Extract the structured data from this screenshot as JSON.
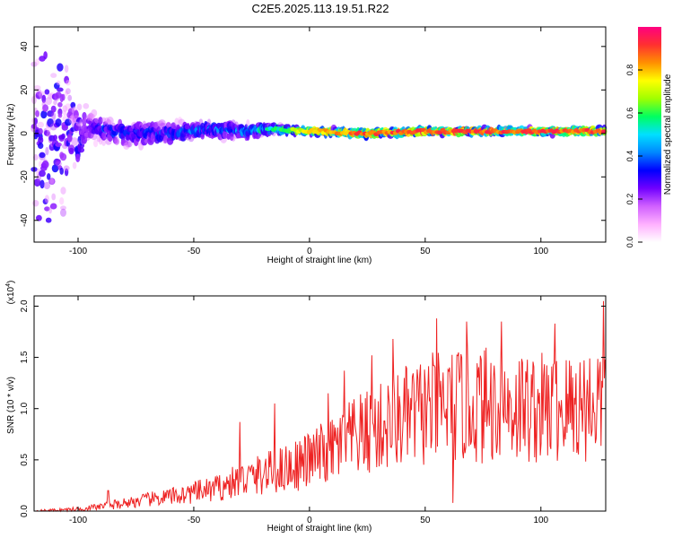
{
  "title": "C2E5.2025.113.19.51.R22",
  "colors": {
    "snr_line": "#ee2222",
    "spectrogram_peak": "#ff2a2a",
    "background": "#ffffff"
  },
  "chart_data": [
    {
      "type": "heatmap",
      "name": "spectrogram",
      "title": "C2E5.2025.113.19.51.R22",
      "xlabel": "Height of straight line (km)",
      "ylabel": "Frequency (Hz)",
      "xlim": [
        -119,
        128
      ],
      "ylim": [
        -50,
        49
      ],
      "x_ticks": [
        -100,
        -50,
        0,
        50,
        100
      ],
      "x_tick_labels": [
        "-100",
        "-50",
        "0",
        "50",
        "100"
      ],
      "y_ticks": [
        -40,
        -20,
        0,
        20,
        40
      ],
      "y_tick_labels": [
        "-40",
        "-20",
        "0",
        "20",
        "40"
      ],
      "colorbar": {
        "label": "Normalized spectral amplitude",
        "range": [
          0,
          1
        ],
        "ticks": [
          0,
          0.2,
          0.4,
          0.6,
          0.8
        ],
        "tick_labels": [
          "0.0",
          "0.2",
          "0.4",
          "0.6",
          "0.8"
        ],
        "colormap": [
          "#ffffff",
          "#ffb0ff",
          "#d060ff",
          "#7000ff",
          "#0000ff",
          "#0088ff",
          "#00e0ff",
          "#00ff60",
          "#a0ff00",
          "#ffff00",
          "#ff9000",
          "#ff3030",
          "#ff0080"
        ]
      },
      "ridge": [
        {
          "x": -110,
          "freq": 0,
          "spread": 40,
          "amp": 0.15
        },
        {
          "x": -95,
          "freq": 3,
          "spread": 7,
          "amp": 0.35
        },
        {
          "x": -80,
          "freq": 0,
          "spread": 6,
          "amp": 0.4
        },
        {
          "x": -60,
          "freq": 0,
          "spread": 6,
          "amp": 0.4
        },
        {
          "x": -45,
          "freq": 2,
          "spread": 4,
          "amp": 0.45
        },
        {
          "x": -30,
          "freq": 1,
          "spread": 4,
          "amp": 0.45
        },
        {
          "x": -15,
          "freq": 2,
          "spread": 2,
          "amp": 0.6
        },
        {
          "x": 0,
          "freq": 1,
          "spread": 1.5,
          "amp": 0.85
        },
        {
          "x": 25,
          "freq": 0,
          "spread": 1.5,
          "amp": 0.95
        },
        {
          "x": 50,
          "freq": 1,
          "spread": 1.5,
          "amp": 0.95
        },
        {
          "x": 100,
          "freq": 1,
          "spread": 1.5,
          "amp": 0.95
        },
        {
          "x": 128,
          "freq": 1,
          "spread": 1.5,
          "amp": 0.95
        }
      ]
    },
    {
      "type": "line",
      "name": "snr",
      "xlabel": "Height of straight line (km)",
      "ylabel": "SNR (10 * v/v)",
      "y_multiplier_label": "(x10",
      "y_multiplier_exp": "4",
      "y_multiplier_close": ")",
      "xlim": [
        -119,
        128
      ],
      "ylim": [
        0,
        2.1
      ],
      "x_ticks": [
        -100,
        -50,
        0,
        50,
        100
      ],
      "x_tick_labels": [
        "-100",
        "-50",
        "0",
        "50",
        "100"
      ],
      "y_ticks": [
        0,
        0.5,
        1.0,
        1.5,
        2.0
      ],
      "y_tick_labels": [
        "0.0",
        "0.5",
        "1.0",
        "1.5",
        "2.0"
      ],
      "series": [
        {
          "envelope": {
            "x": [
              -119,
              -100,
              -88,
              -80,
              -60,
              -40,
              -30,
              -20,
              -10,
              0,
              10,
              20,
              30,
              40,
              50,
              60,
              70,
              80,
              90,
              100,
              110,
              120,
              128
            ],
            "y": [
              0.0,
              0.02,
              0.05,
              0.08,
              0.14,
              0.22,
              0.3,
              0.36,
              0.42,
              0.5,
              0.6,
              0.72,
              0.8,
              0.9,
              0.98,
              1.02,
              1.03,
              1.04,
              1.02,
              1.0,
              1.0,
              1.05,
              1.1
            ]
          },
          "spikes": [
            {
              "x": -87,
              "y": 0.2
            },
            {
              "x": -30,
              "y": 0.87
            },
            {
              "x": -15,
              "y": 1.05
            },
            {
              "x": 8,
              "y": 1.15
            },
            {
              "x": 15,
              "y": 1.37
            },
            {
              "x": 27,
              "y": 1.52
            },
            {
              "x": 36,
              "y": 1.68
            },
            {
              "x": 55,
              "y": 1.88
            },
            {
              "x": 62,
              "y": 0.08
            },
            {
              "x": 68,
              "y": 1.85
            },
            {
              "x": 83,
              "y": 1.85
            },
            {
              "x": 106,
              "y": 1.83
            },
            {
              "x": 127,
              "y": 2.05
            }
          ]
        }
      ]
    }
  ]
}
